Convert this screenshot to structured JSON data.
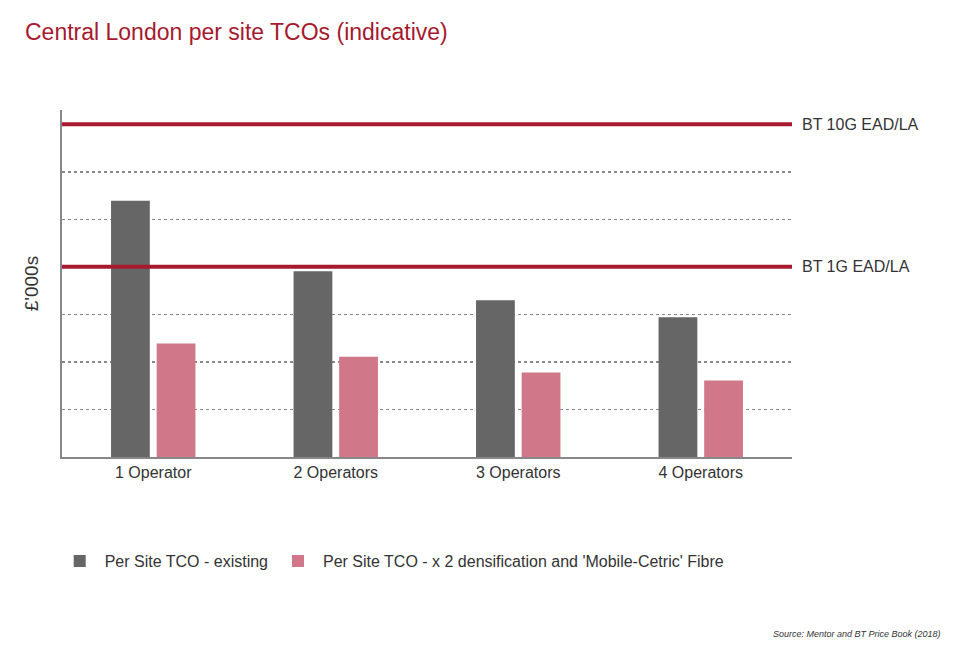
{
  "chart_data": {
    "type": "bar",
    "title": "Central London per site TCOs (indicative)",
    "y_label": "£'000s",
    "categories": [
      "1 Operator",
      "2 Operators",
      "3 Operators",
      "4 Operators"
    ],
    "series": [
      {
        "name": "Per Site TCO - existing",
        "color": "#666666",
        "values": [
          5.39,
          3.91,
          3.3,
          2.94
        ]
      },
      {
        "name": "Per Site TCO - x 2 densification and 'Mobile-Cetric' Fibre",
        "color": "#d0788a",
        "values": [
          2.39,
          2.11,
          1.78,
          1.61
        ]
      }
    ],
    "reference_lines": [
      {
        "label": "BT 10G EAD/LA",
        "value": 7,
        "color": "#a6192e"
      },
      {
        "label": "BT 1G EAD/LA",
        "value": 4,
        "color": "#a6192e"
      }
    ],
    "ylim": [
      0,
      7.3
    ],
    "yticks": [
      0,
      1,
      2,
      3,
      4,
      5,
      6,
      7
    ],
    "grid": true,
    "tick_labels": "x",
    "legend": "bottom",
    "source": "Source: Mentor and BT Price Book (2018)"
  }
}
